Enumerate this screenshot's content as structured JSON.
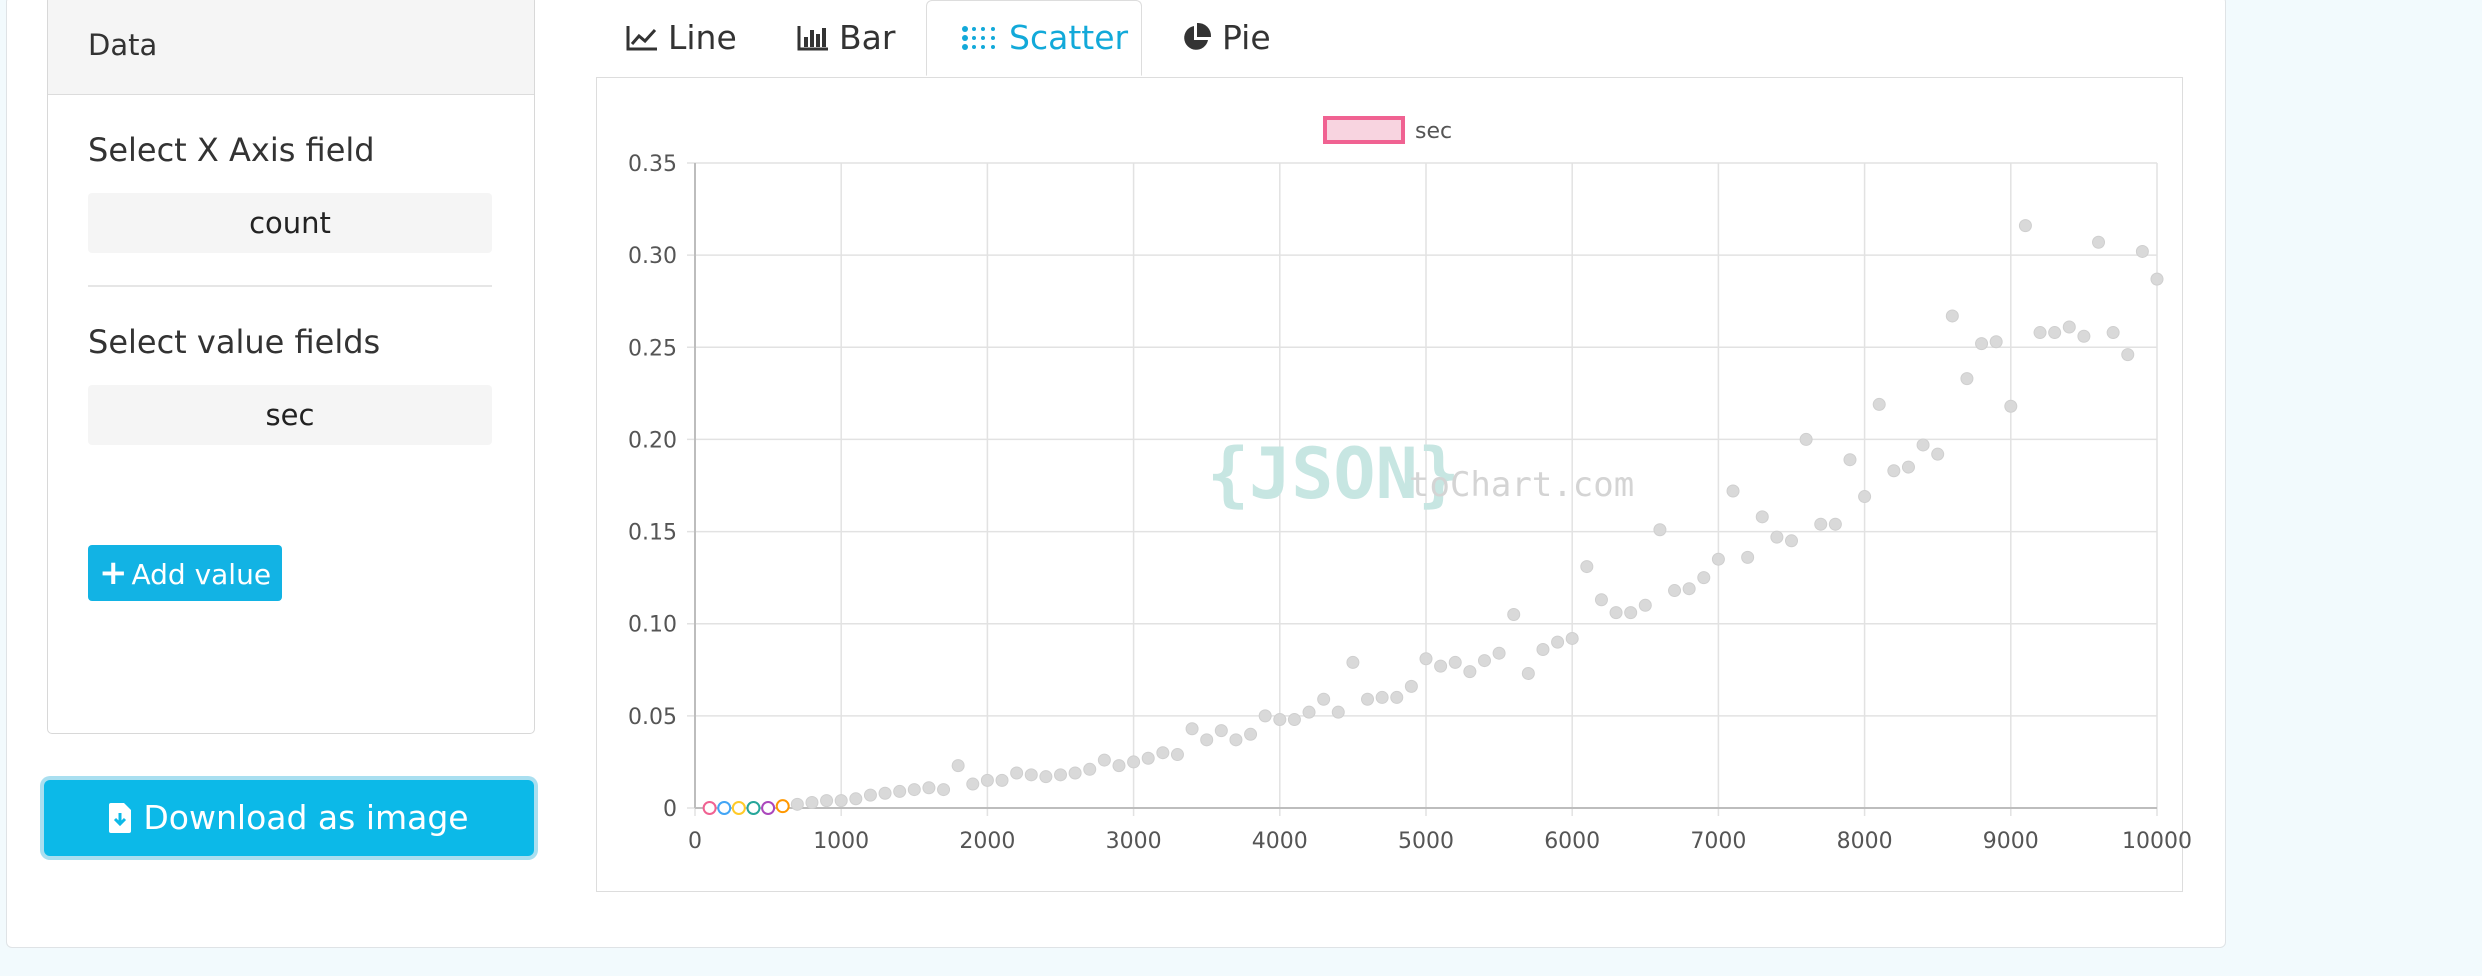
{
  "sidebar": {
    "panel_title": "Data",
    "x_axis_label": "Select X Axis field",
    "x_axis_value": "count",
    "value_fields_label": "Select value fields",
    "value_fields_value": "sec",
    "add_value_label": "Add value",
    "download_label": "Download as image"
  },
  "tabs": [
    {
      "label": "Line",
      "icon": "line-chart-icon"
    },
    {
      "label": "Bar",
      "icon": "bar-chart-icon"
    },
    {
      "label": "Scatter",
      "icon": "scatter-chart-icon",
      "active": true
    },
    {
      "label": "Pie",
      "icon": "pie-chart-icon"
    }
  ],
  "watermark": {
    "brace": "{JSON}",
    "suffix": "toChart.com"
  },
  "colors": {
    "accent": "#12b3e4",
    "legend_border": "#f06292",
    "point_fill": "#d9d9d9"
  },
  "chart_data": {
    "type": "scatter",
    "legend": [
      {
        "name": "sec"
      }
    ],
    "legend_position": "top-center",
    "grid": true,
    "xlim": [
      0,
      10000
    ],
    "ylim": [
      0,
      0.35
    ],
    "xticks": [
      "0",
      "1000",
      "2000",
      "3000",
      "4000",
      "5000",
      "6000",
      "7000",
      "8000",
      "9000",
      "10000"
    ],
    "yticks": [
      "0",
      "0.05",
      "0.10",
      "0.15",
      "0.20",
      "0.25",
      "0.30",
      "0.35"
    ],
    "series": [
      {
        "name": "sec",
        "x": [
          100,
          200,
          300,
          400,
          500,
          600,
          700,
          800,
          900,
          1000,
          1100,
          1200,
          1300,
          1400,
          1500,
          1600,
          1700,
          1800,
          1900,
          2000,
          2100,
          2200,
          2300,
          2400,
          2500,
          2600,
          2700,
          2800,
          2900,
          3000,
          3100,
          3200,
          3300,
          3400,
          3500,
          3600,
          3700,
          3800,
          3900,
          4000,
          4100,
          4200,
          4300,
          4400,
          4500,
          4600,
          4700,
          4800,
          4900,
          5000,
          5100,
          5200,
          5300,
          5400,
          5500,
          5600,
          5700,
          5800,
          5900,
          6000,
          6100,
          6200,
          6300,
          6400,
          6500,
          6600,
          6700,
          6800,
          6900,
          7000,
          7100,
          7200,
          7300,
          7400,
          7500,
          7600,
          7700,
          7800,
          7900,
          8000,
          8100,
          8200,
          8300,
          8400,
          8500,
          8600,
          8700,
          8800,
          8900,
          9000,
          9100,
          9200,
          9300,
          9400,
          9500,
          9600,
          9700,
          9800,
          9900,
          10000
        ],
        "y": [
          0,
          0,
          0,
          0,
          0,
          0.001,
          0.002,
          0.003,
          0.004,
          0.004,
          0.005,
          0.007,
          0.008,
          0.009,
          0.01,
          0.011,
          0.01,
          0.023,
          0.013,
          0.015,
          0.015,
          0.019,
          0.018,
          0.017,
          0.018,
          0.019,
          0.021,
          0.026,
          0.023,
          0.025,
          0.027,
          0.03,
          0.029,
          0.043,
          0.037,
          0.042,
          0.037,
          0.04,
          0.05,
          0.048,
          0.048,
          0.052,
          0.059,
          0.052,
          0.079,
          0.059,
          0.06,
          0.06,
          0.066,
          0.081,
          0.077,
          0.079,
          0.074,
          0.08,
          0.084,
          0.105,
          0.073,
          0.086,
          0.09,
          0.092,
          0.131,
          0.113,
          0.106,
          0.106,
          0.11,
          0.151,
          0.118,
          0.119,
          0.125,
          0.135,
          0.172,
          0.136,
          0.158,
          0.147,
          0.145,
          0.2,
          0.154,
          0.154,
          0.189,
          0.169,
          0.219,
          0.183,
          0.185,
          0.197,
          0.192,
          0.267,
          0.233,
          0.252,
          0.253,
          0.218,
          0.316,
          0.258,
          0.258,
          0.261,
          0.256,
          0.307,
          0.258,
          0.246,
          0.302,
          0.287
        ]
      }
    ]
  }
}
